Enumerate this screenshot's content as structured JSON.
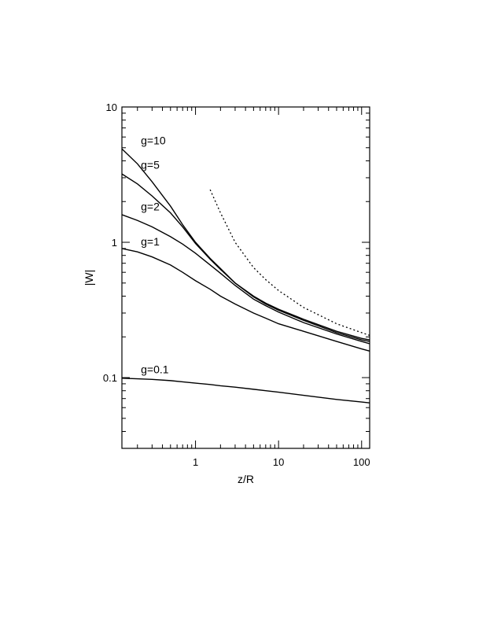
{
  "chart_data": {
    "type": "line",
    "title": "",
    "xlabel": "z/R",
    "ylabel": "|W|",
    "x_scale": "log",
    "y_scale": "log",
    "xlim": [
      0.13,
      125
    ],
    "ylim": [
      0.03,
      10
    ],
    "grid": false,
    "x_tick_labels": [
      {
        "value": 1,
        "label": "1"
      },
      {
        "value": 10,
        "label": "10"
      },
      {
        "value": 100,
        "label": "100"
      }
    ],
    "y_tick_labels": [
      {
        "value": 0.1,
        "label": "0.1"
      },
      {
        "value": 1,
        "label": "1"
      },
      {
        "value": 10,
        "label": "10"
      }
    ],
    "series": [
      {
        "name": "g=10",
        "style": "solid",
        "label_anchor": [
          0.22,
          5.3
        ],
        "x": [
          0.13,
          0.2,
          0.3,
          0.5,
          0.7,
          1,
          1.5,
          2,
          3,
          5,
          7,
          10,
          20,
          50,
          100,
          125
        ],
        "y": [
          4.9,
          3.8,
          2.8,
          1.85,
          1.35,
          1.0,
          0.76,
          0.64,
          0.5,
          0.4,
          0.355,
          0.32,
          0.27,
          0.22,
          0.195,
          0.19
        ]
      },
      {
        "name": "g=5",
        "style": "solid",
        "label_anchor": [
          0.22,
          3.5
        ],
        "x": [
          0.13,
          0.2,
          0.3,
          0.5,
          0.7,
          1,
          1.5,
          2,
          3,
          5,
          7,
          10,
          20,
          50,
          100,
          125
        ],
        "y": [
          3.2,
          2.7,
          2.2,
          1.65,
          1.3,
          0.98,
          0.75,
          0.63,
          0.5,
          0.395,
          0.35,
          0.315,
          0.265,
          0.215,
          0.19,
          0.185
        ]
      },
      {
        "name": "g=2",
        "style": "solid",
        "label_anchor": [
          0.22,
          1.72
        ],
        "x": [
          0.13,
          0.2,
          0.3,
          0.5,
          0.7,
          1,
          1.5,
          2,
          3,
          5,
          7,
          10,
          20,
          50,
          100,
          125
        ],
        "y": [
          1.6,
          1.45,
          1.3,
          1.1,
          0.97,
          0.83,
          0.68,
          0.59,
          0.48,
          0.38,
          0.34,
          0.305,
          0.255,
          0.21,
          0.185,
          0.178
        ]
      },
      {
        "name": "g=1",
        "style": "solid",
        "label_anchor": [
          0.22,
          0.95
        ],
        "x": [
          0.13,
          0.2,
          0.3,
          0.5,
          0.7,
          1,
          1.5,
          2,
          3,
          5,
          7,
          10,
          20,
          50,
          100,
          125
        ],
        "y": [
          0.9,
          0.85,
          0.78,
          0.68,
          0.6,
          0.52,
          0.45,
          0.4,
          0.35,
          0.3,
          0.275,
          0.25,
          0.22,
          0.185,
          0.163,
          0.157
        ]
      },
      {
        "name": "g=0.1",
        "style": "solid",
        "label_anchor": [
          0.22,
          0.108
        ],
        "x": [
          0.13,
          0.2,
          0.3,
          0.5,
          0.7,
          1,
          1.5,
          2,
          3,
          5,
          7,
          10,
          20,
          50,
          100,
          125
        ],
        "y": [
          0.099,
          0.098,
          0.097,
          0.095,
          0.093,
          0.091,
          0.089,
          0.087,
          0.085,
          0.082,
          0.08,
          0.078,
          0.074,
          0.069,
          0.066,
          0.065
        ]
      },
      {
        "name": "",
        "style": "dotted",
        "x": [
          1.5,
          2,
          3,
          5,
          7,
          10,
          20,
          50,
          100,
          125
        ],
        "y": [
          2.45,
          1.65,
          1.0,
          0.65,
          0.53,
          0.44,
          0.33,
          0.25,
          0.215,
          0.205
        ]
      }
    ]
  }
}
